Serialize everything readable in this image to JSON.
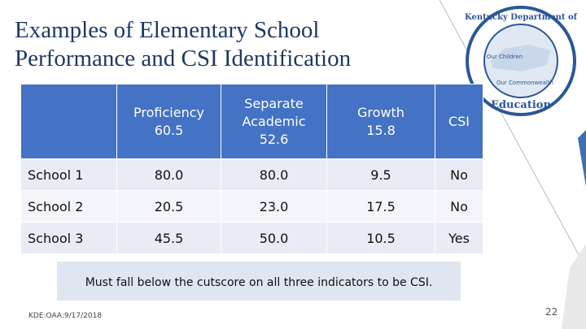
{
  "title": "Examples of Elementary School Performance and CSI Identification",
  "table": {
    "header": [
      {
        "label": "Proficiency",
        "value": "60.5"
      },
      {
        "label": "Separate Academic",
        "value": "52.6"
      },
      {
        "label": "Growth",
        "value": "15.8"
      },
      {
        "label": "CSI"
      }
    ],
    "rows": [
      [
        "School 1",
        "80.0",
        "80.0",
        "9.5",
        "No"
      ],
      [
        "School 2",
        "20.5",
        "23.0",
        "17.5",
        "No"
      ],
      [
        "School 3",
        "45.5",
        "50.0",
        "10.5",
        "Yes"
      ]
    ]
  },
  "note": "Must fall below the cutscore on all three indicators to be CSI.",
  "footer": "KDE:OAA:9/17/2018",
  "page_number": "22",
  "logo": {
    "top": "Kentucky Department of",
    "bottom": "Education",
    "line1": "Our Children",
    "line2": "Our Commonwealth"
  }
}
